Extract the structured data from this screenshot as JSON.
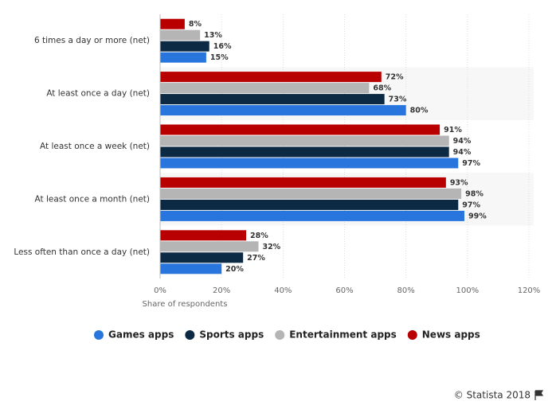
{
  "chart_data": {
    "type": "bar",
    "orientation": "horizontal",
    "categories": [
      "6 times a day or more (net)",
      "At least once a day (net)",
      "At least once a week (net)",
      "At least once a month (net)",
      "Less often than once a day (net)"
    ],
    "series": [
      {
        "name": "Games apps",
        "color": "#2876dd",
        "values": [
          15,
          80,
          97,
          99,
          20
        ],
        "value_labels": [
          "15%",
          "80%",
          "97%",
          "99%",
          "20%"
        ]
      },
      {
        "name": "Sports apps",
        "color": "#0d2a45",
        "values": [
          16,
          73,
          94,
          97,
          27
        ],
        "value_labels": [
          "16%",
          "73%",
          "94%",
          "97%",
          "27%"
        ]
      },
      {
        "name": "Entertainment apps",
        "color": "#b5b5b5",
        "values": [
          13,
          68,
          94,
          98,
          32
        ],
        "value_labels": [
          "13%",
          "68%",
          "94%",
          "98%",
          "32%"
        ]
      },
      {
        "name": "News apps",
        "color": "#b80000",
        "values": [
          8,
          72,
          91,
          93,
          28
        ],
        "value_labels": [
          "8%",
          "72%",
          "91%",
          "93%",
          "28%"
        ]
      }
    ],
    "x_label": "Share of respondents",
    "xlim": [
      0,
      120
    ],
    "xticks": [
      {
        "value": 0,
        "label": "0%"
      },
      {
        "value": 20,
        "label": "20%"
      },
      {
        "value": 40,
        "label": "40%"
      },
      {
        "value": 60,
        "label": "60%"
      },
      {
        "value": 80,
        "label": "80%"
      },
      {
        "value": 100,
        "label": "100%"
      },
      {
        "value": 120,
        "label": "120%"
      }
    ],
    "grid": true,
    "legend": "bottom",
    "source": "© Statista 2018"
  }
}
